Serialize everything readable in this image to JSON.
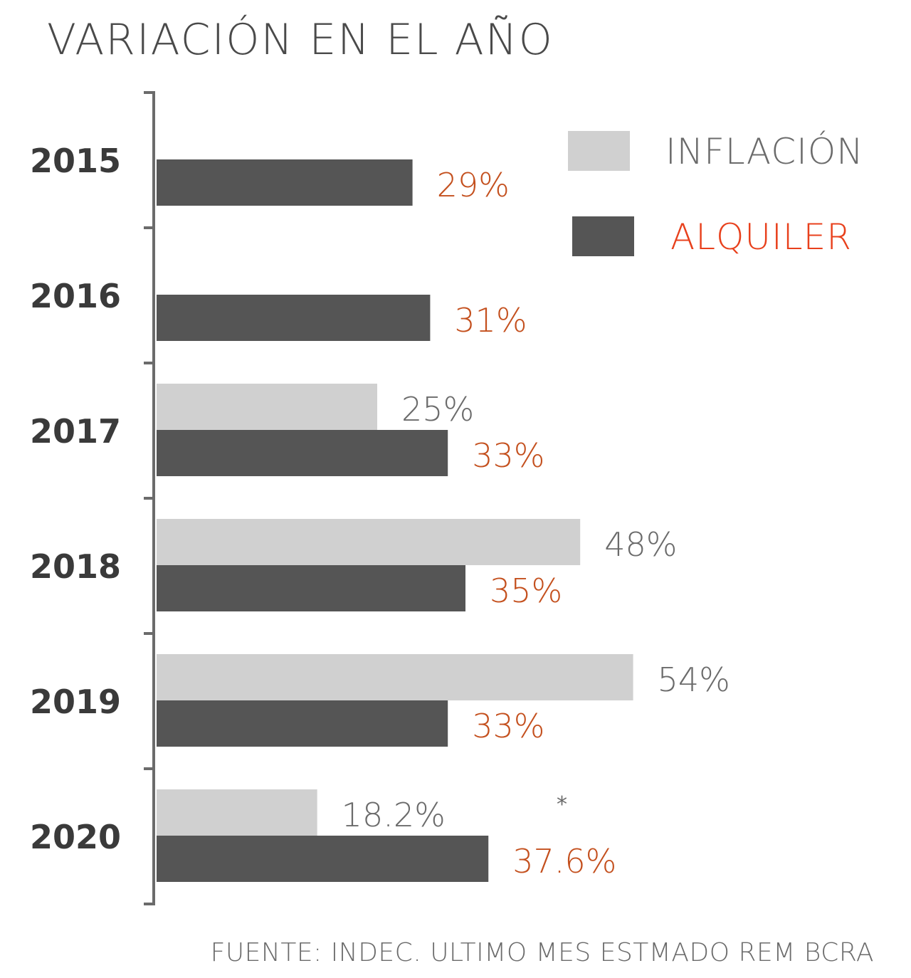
{
  "chart_data": {
    "type": "bar",
    "orientation": "horizontal",
    "title": "VARIACIÓN EN EL AÑO",
    "categories": [
      "2015",
      "2016",
      "2017",
      "2018",
      "2019",
      "2020"
    ],
    "series": [
      {
        "name": "INFLACIÓN",
        "values": [
          null,
          null,
          25,
          48,
          54,
          18.2
        ],
        "labels": [
          "",
          "",
          "25%",
          "48%",
          "54%",
          "18.2%"
        ],
        "color": "#d0d0d0",
        "label_color": "#6b6b6b"
      },
      {
        "name": "ALQUILER",
        "values": [
          29,
          31,
          33,
          35,
          33,
          37.6
        ],
        "labels": [
          "29%",
          "31%",
          "33%",
          "35%",
          "33%",
          "37.6%"
        ],
        "color": "#555555",
        "label_color": "#c4501e"
      }
    ],
    "legend_position": "top-right",
    "legend_text_colors": [
      "#6b6b6b",
      "#e8401c"
    ],
    "note_marker": "*",
    "source": "FUENTE: INDEC. ULTIMO MES ESTMADO REM BCRA",
    "colors": {
      "title": "#4a4a4a",
      "year_label": "#3a3a3a",
      "axis": "#6b6b6b",
      "source": "#6b6b6b"
    }
  }
}
